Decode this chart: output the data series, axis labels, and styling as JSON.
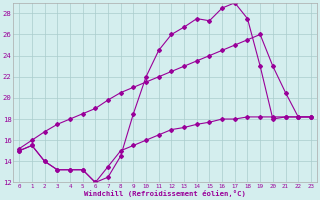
{
  "line1_x": [
    0,
    1,
    2,
    3,
    4,
    5,
    6,
    7,
    8,
    9,
    10,
    11,
    12,
    13,
    14,
    15,
    16,
    17,
    18,
    19,
    20,
    21,
    22,
    23
  ],
  "line1_y": [
    15.0,
    15.5,
    14.0,
    13.2,
    13.2,
    13.2,
    12.0,
    12.5,
    14.5,
    18.5,
    22.0,
    24.5,
    26.0,
    26.7,
    27.5,
    27.3,
    28.5,
    29.0,
    27.5,
    23.0,
    18.0,
    18.2,
    18.2,
    18.2
  ],
  "line2_x": [
    0,
    1,
    2,
    3,
    4,
    5,
    6,
    7,
    8,
    9,
    10,
    11,
    12,
    13,
    14,
    15,
    16,
    17,
    18,
    19,
    20,
    21,
    22,
    23
  ],
  "line2_y": [
    15.2,
    16.0,
    16.8,
    17.5,
    18.0,
    18.5,
    19.0,
    19.8,
    20.5,
    21.0,
    21.5,
    22.0,
    22.5,
    23.0,
    23.5,
    24.0,
    24.5,
    25.0,
    25.5,
    26.0,
    23.0,
    20.5,
    18.2,
    18.2
  ],
  "line3_x": [
    0,
    1,
    2,
    3,
    4,
    5,
    6,
    7,
    8,
    9,
    10,
    11,
    12,
    13,
    14,
    15,
    16,
    17,
    18,
    19,
    20,
    21,
    22,
    23
  ],
  "line3_y": [
    15.0,
    15.5,
    14.0,
    13.2,
    13.2,
    13.2,
    12.0,
    13.5,
    15.0,
    15.5,
    16.0,
    16.5,
    17.0,
    17.2,
    17.5,
    17.7,
    18.0,
    18.0,
    18.2,
    18.2,
    18.2,
    18.2,
    18.2,
    18.2
  ],
  "line_color": "#990099",
  "bg_color": "#d4eeee",
  "grid_color": "#aacccc",
  "xlim_min": -0.5,
  "xlim_max": 23.5,
  "ylim_min": 12,
  "ylim_max": 29,
  "yticks": [
    12,
    14,
    16,
    18,
    20,
    22,
    24,
    26,
    28
  ],
  "xticks": [
    0,
    1,
    2,
    3,
    4,
    5,
    6,
    7,
    8,
    9,
    10,
    11,
    12,
    13,
    14,
    15,
    16,
    17,
    18,
    19,
    20,
    21,
    22,
    23
  ],
  "xlabel": "Windchill (Refroidissement éolien,°C)",
  "marker": "D",
  "marker_size": 2.0,
  "line_width": 0.8
}
